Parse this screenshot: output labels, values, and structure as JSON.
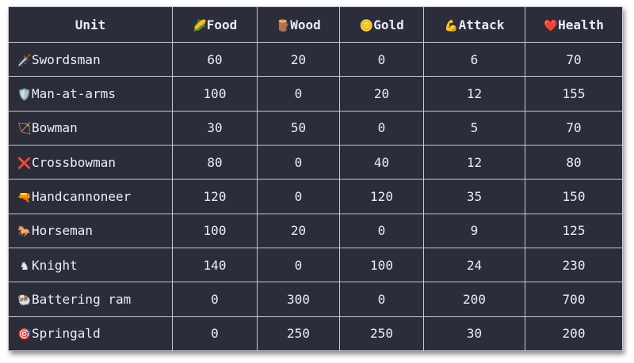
{
  "table": {
    "headers": [
      {
        "icon": "🌽",
        "label": "Unit"
      },
      {
        "icon": "🌽",
        "label": "Food"
      },
      {
        "icon": "🪵",
        "label": "Wood"
      },
      {
        "icon": "🪙",
        "label": "Gold"
      },
      {
        "icon": "💪",
        "label": "Attack"
      },
      {
        "icon": "❤️",
        "label": "Health"
      }
    ],
    "rows": [
      {
        "icon": "🗡️",
        "unit": "Swordsman",
        "food": "60",
        "wood": "20",
        "gold": "0",
        "attack": "6",
        "health": "70"
      },
      {
        "icon": "🛡️",
        "unit": "Man-at-arms",
        "food": "100",
        "wood": "0",
        "gold": "20",
        "attack": "12",
        "health": "155"
      },
      {
        "icon": "🏹",
        "unit": "Bowman",
        "food": "30",
        "wood": "50",
        "gold": "0",
        "attack": "5",
        "health": "70"
      },
      {
        "icon": "❌",
        "unit": "Crossbowman",
        "food": "80",
        "wood": "0",
        "gold": "40",
        "attack": "12",
        "health": "80"
      },
      {
        "icon": "🔫",
        "unit": "Handcannoneer",
        "food": "120",
        "wood": "0",
        "gold": "120",
        "attack": "35",
        "health": "150"
      },
      {
        "icon": "🐎",
        "unit": "Horseman",
        "food": "100",
        "wood": "20",
        "gold": "0",
        "attack": "9",
        "health": "125"
      },
      {
        "icon": "♞",
        "unit": "Knight",
        "food": "140",
        "wood": "0",
        "gold": "100",
        "attack": "24",
        "health": "230"
      },
      {
        "icon": "🐏",
        "unit": "Battering ram",
        "food": "0",
        "wood": "300",
        "gold": "0",
        "attack": "200",
        "health": "700"
      },
      {
        "icon": "🎯",
        "unit": "Springald",
        "food": "0",
        "wood": "250",
        "gold": "250",
        "attack": "30",
        "health": "200"
      }
    ]
  }
}
